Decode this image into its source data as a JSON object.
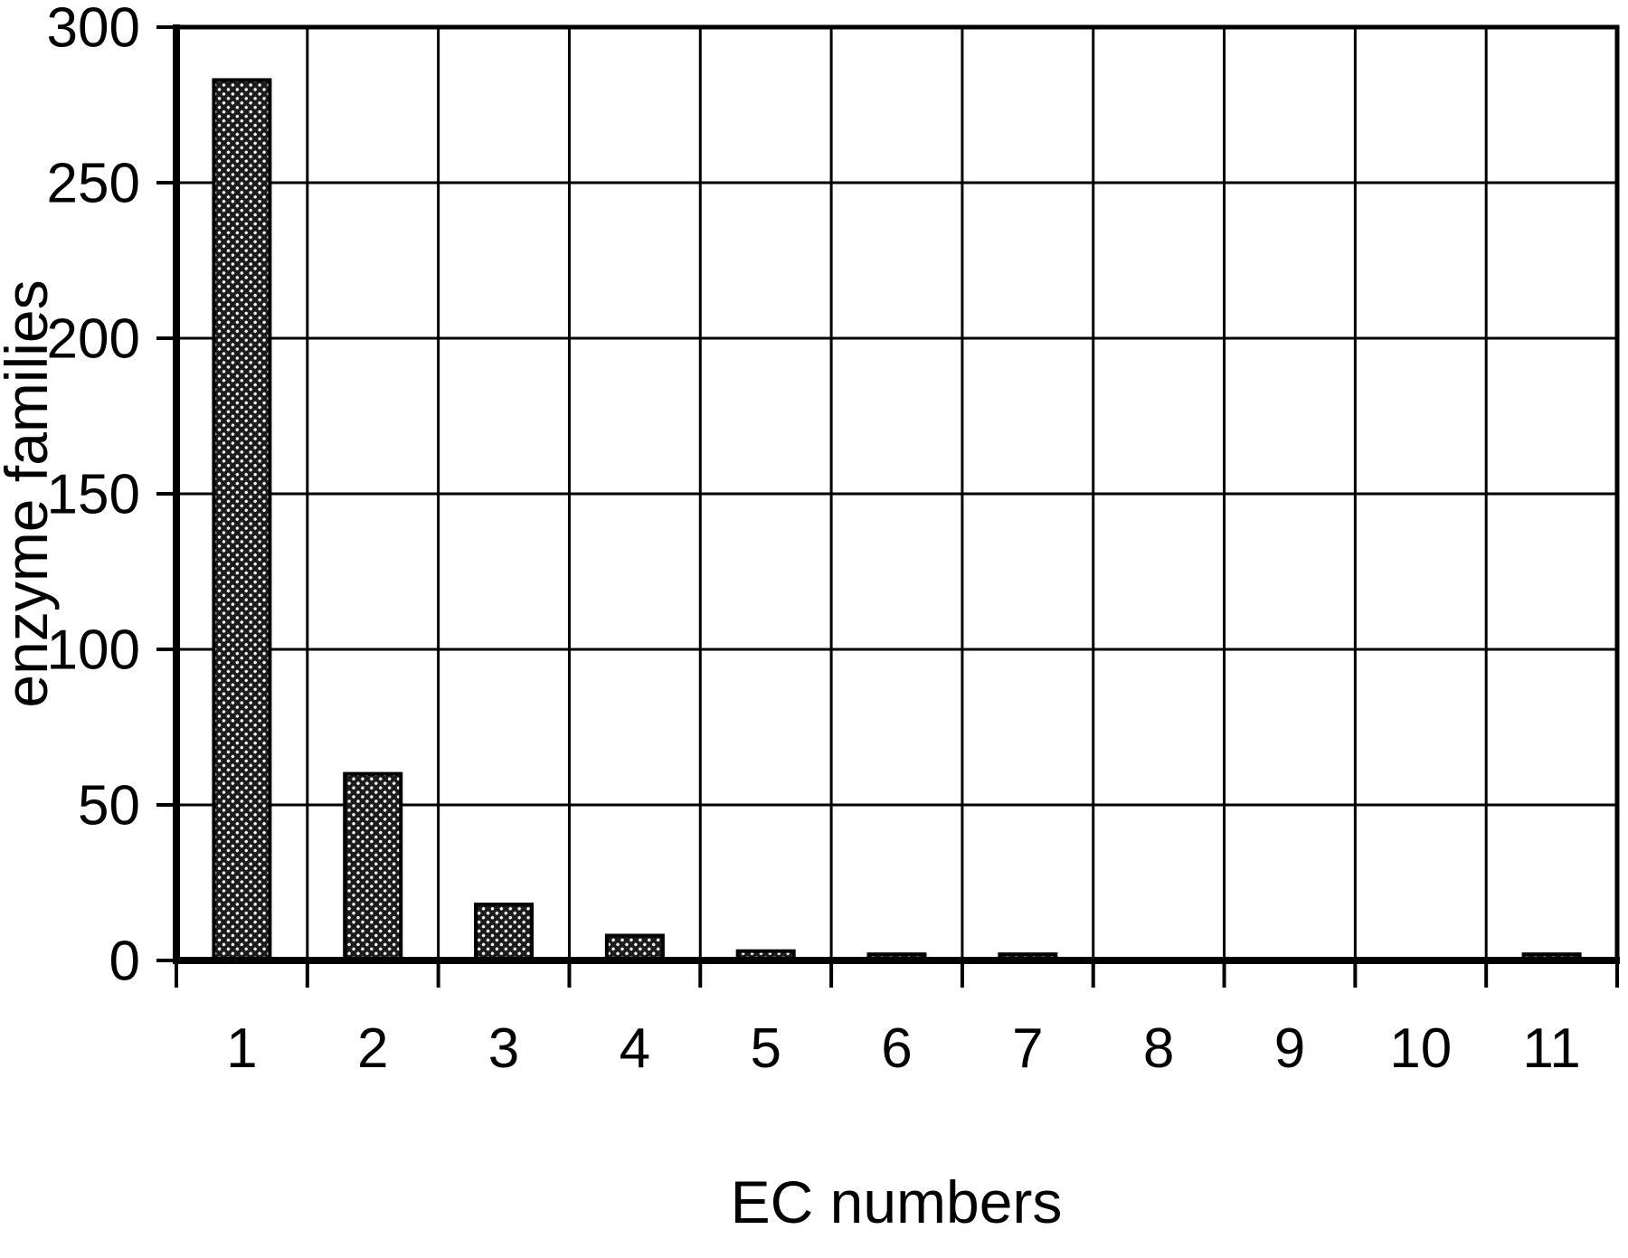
{
  "chart_data": {
    "type": "bar",
    "title": "",
    "xlabel": "EC numbers",
    "ylabel": "enzyme families",
    "categories": [
      "1",
      "2",
      "3",
      "4",
      "5",
      "6",
      "7",
      "8",
      "9",
      "10",
      "11"
    ],
    "values": [
      283,
      60,
      18,
      8,
      3,
      2,
      2,
      0,
      0,
      0,
      2
    ],
    "ylim": [
      0,
      300
    ],
    "yticks": [
      0,
      50,
      100,
      150,
      200,
      250,
      300
    ],
    "grid": true,
    "legend": "none",
    "bar_fill_style": "dark halftone dot pattern",
    "colors": {
      "axis": "#000000",
      "grid": "#000000",
      "bar_dark": "#1c1c1c",
      "bar_dot": "#ffffff",
      "background": "#ffffff",
      "text": "#000000"
    }
  }
}
